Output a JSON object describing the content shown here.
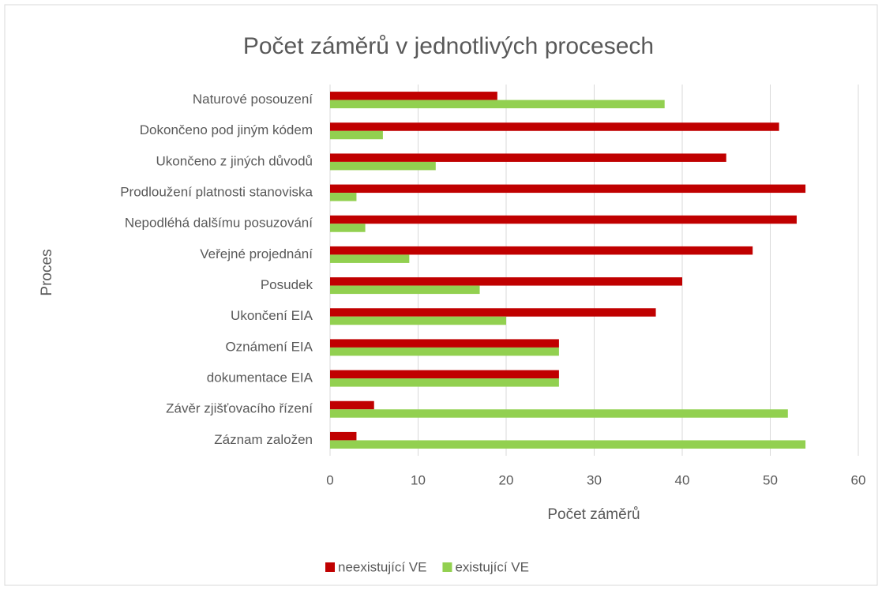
{
  "chart_data": {
    "type": "bar",
    "orientation": "horizontal",
    "title": "Počet záměrů v jednotlivých procesech",
    "x_label": "Počet záměrů",
    "y_label": "Proces",
    "categories": [
      "Naturové posouzení",
      "Dokončeno pod jiným kódem",
      "Ukončeno z jiných důvodů",
      "Prodloužení platnosti stanoviska",
      "Nepodléhá dalšímu posuzování",
      "Veřejné projednání",
      "Posudek",
      "Ukončení EIA",
      "Oznámení EIA",
      "dokumentace EIA",
      "Závěr zjišťovacího řízení",
      "Záznam založen"
    ],
    "series": [
      {
        "name": "neexistující VE",
        "color": "#c00000",
        "values": [
          19,
          51,
          45,
          54,
          53,
          48,
          40,
          37,
          26,
          26,
          5,
          3
        ]
      },
      {
        "name": "existující VE",
        "color": "#92d050",
        "values": [
          38,
          6,
          12,
          3,
          4,
          9,
          17,
          20,
          26,
          26,
          52,
          54
        ]
      }
    ],
    "xlim": [
      0,
      60
    ],
    "xticks": [
      0,
      10,
      20,
      30,
      40,
      50,
      60
    ],
    "grid": true,
    "legend": "bottom"
  }
}
